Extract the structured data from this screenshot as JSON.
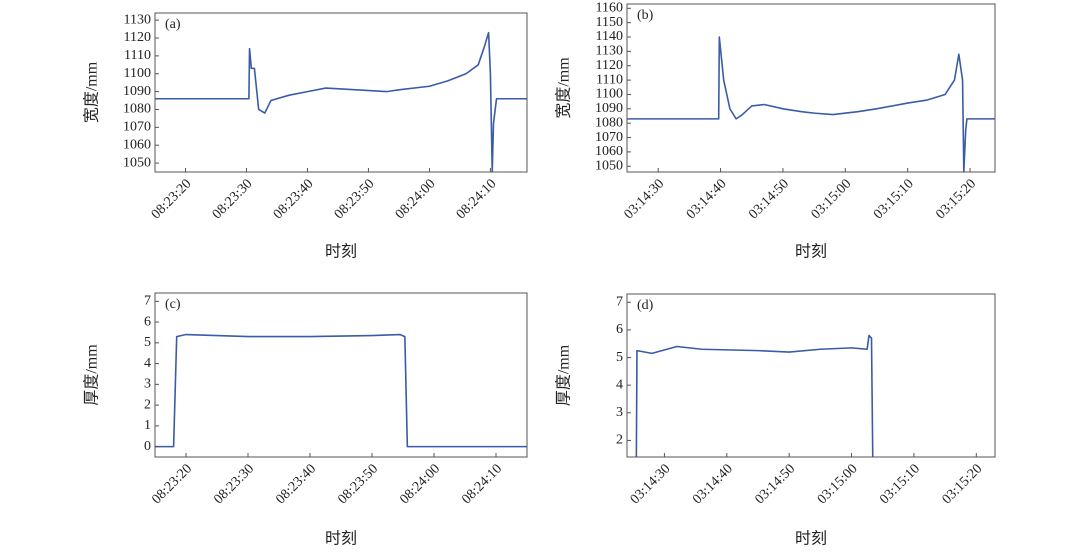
{
  "chart_data": [
    {
      "type": "line",
      "label": "(a)",
      "xlabel": "时刻",
      "ylabel": "宽度/mm",
      "color": "#3a5ba8",
      "xlim": [
        "08:23:15",
        "08:24:16"
      ],
      "xticks": [
        "08:23:20",
        "08:23:30",
        "08:23:40",
        "08:23:50",
        "08:24:00",
        "08:24:10"
      ],
      "ylim": [
        1045,
        1134
      ],
      "yticks": [
        1050,
        1060,
        1070,
        1080,
        1090,
        1100,
        1110,
        1120,
        1130
      ],
      "x": [
        "08:23:15",
        "08:23:30.4",
        "08:23:30.5",
        "08:23:30.8",
        "08:23:31.3",
        "08:23:32",
        "08:23:33",
        "08:23:34",
        "08:23:37",
        "08:23:40",
        "08:23:43",
        "08:23:48",
        "08:23:53",
        "08:23:55",
        "08:24:00",
        "08:24:03",
        "08:24:06",
        "08:24:08",
        "08:24:09",
        "08:24:09.7",
        "08:24:10",
        "08:24:10.3",
        "08:24:10.5",
        "08:24:11",
        "08:24:16"
      ],
      "values": [
        1086,
        1086,
        1114,
        1103,
        1103,
        1080,
        1078,
        1085,
        1088,
        1090,
        1092,
        1091,
        1090,
        1091,
        1093,
        1096,
        1100,
        1105,
        1115,
        1123,
        1100,
        1045,
        1072,
        1086,
        1086
      ]
    },
    {
      "type": "line",
      "label": "(b)",
      "xlabel": "时刻",
      "ylabel": "宽度/mm",
      "color": "#3a5ba8",
      "xlim": [
        "03:14:25",
        "03:15:24"
      ],
      "xticks": [
        "03:14:30",
        "03:14:40",
        "03:14:50",
        "03:15:00",
        "03:15:10",
        "03:15:20"
      ],
      "ylim": [
        1046,
        1163
      ],
      "yticks": [
        1050,
        1060,
        1070,
        1080,
        1090,
        1100,
        1110,
        1120,
        1130,
        1140,
        1150,
        1160
      ],
      "x": [
        "03:14:25",
        "03:14:39.7",
        "03:14:39.8",
        "03:14:40.5",
        "03:14:41.5",
        "03:14:42.5",
        "03:14:43.5",
        "03:14:45",
        "03:14:47",
        "03:14:50",
        "03:14:53",
        "03:14:55",
        "03:14:58",
        "03:15:02",
        "03:15:05",
        "03:15:10",
        "03:15:13",
        "03:15:16",
        "03:15:17.5",
        "03:15:18.2",
        "03:15:18.8",
        "03:15:19",
        "03:15:19.3",
        "03:15:19.5",
        "03:15:24"
      ],
      "values": [
        1083,
        1083,
        1140,
        1110,
        1090,
        1083,
        1086,
        1092,
        1093,
        1090,
        1088,
        1087,
        1086,
        1088,
        1090,
        1094,
        1096,
        1100,
        1110,
        1128,
        1110,
        1046,
        1075,
        1083,
        1083
      ]
    },
    {
      "type": "line",
      "label": "(c)",
      "xlabel": "时刻",
      "ylabel": "厚度/mm",
      "color": "#3a5ba8",
      "xlim": [
        "08:23:15",
        "08:24:15"
      ],
      "xticks": [
        "08:23:20",
        "08:23:30",
        "08:23:40",
        "08:23:50",
        "08:24:00",
        "08:24:10"
      ],
      "ylim": [
        -0.5,
        7.4
      ],
      "yticks": [
        0,
        1,
        2,
        3,
        4,
        5,
        6,
        7
      ],
      "x": [
        "08:23:15",
        "08:23:18",
        "08:23:18.5",
        "08:23:20",
        "08:23:25",
        "08:23:30",
        "08:23:40",
        "08:23:50",
        "08:23:54.5",
        "08:23:55.3",
        "08:23:55.7",
        "08:24:15"
      ],
      "values": [
        0,
        0,
        5.3,
        5.4,
        5.35,
        5.3,
        5.3,
        5.35,
        5.4,
        5.3,
        0,
        0
      ]
    },
    {
      "type": "line",
      "label": "(d)",
      "xlabel": "时刻",
      "ylabel": "厚度/mm",
      "color": "#3a5ba8",
      "xlim": [
        "03:14:24",
        "03:15:23"
      ],
      "xticks": [
        "03:14:30",
        "03:14:40",
        "03:14:50",
        "03:15:00",
        "03:15:10",
        "03:15:20"
      ],
      "ylim": [
        1.4,
        7.3
      ],
      "yticks": [
        2,
        3,
        4,
        5,
        6,
        7
      ],
      "x": [
        "03:14:25.5",
        "03:14:25.6",
        "03:14:28",
        "03:14:32",
        "03:14:36",
        "03:14:45",
        "03:14:50",
        "03:14:55",
        "03:15:00",
        "03:15:02.5",
        "03:15:02.8",
        "03:15:03.2",
        "03:15:03.4"
      ],
      "values": [
        1.4,
        5.25,
        5.15,
        5.4,
        5.3,
        5.25,
        5.2,
        5.3,
        5.35,
        5.3,
        5.8,
        5.7,
        1.4
      ]
    }
  ]
}
